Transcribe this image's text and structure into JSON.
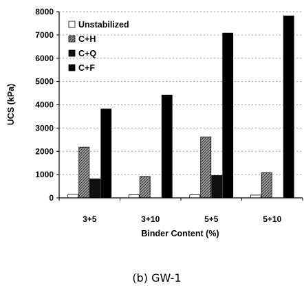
{
  "chart_data": {
    "type": "bar",
    "categories": [
      "3+5",
      "3+10",
      "5+5",
      "5+10"
    ],
    "series": [
      {
        "name": "Unstabilized",
        "values": [
          150,
          130,
          130,
          120
        ],
        "fill": "#ffffff",
        "pattern": "none"
      },
      {
        "name": "C+H",
        "values": [
          2180,
          920,
          2620,
          1080
        ],
        "fill": "#8a8a8a",
        "pattern": "hatch"
      },
      {
        "name": "C+Q",
        "values": [
          820,
          0,
          960,
          0
        ],
        "fill": "#111111",
        "pattern": "none"
      },
      {
        "name": "C+F",
        "values": [
          3820,
          4420,
          7080,
          7820
        ],
        "fill": "#000000",
        "pattern": "none"
      }
    ],
    "xlabel": "Binder Content (%)",
    "ylabel": "UCS (kPa)",
    "ylim": [
      0,
      8000
    ],
    "yticks": [
      0,
      1000,
      2000,
      3000,
      4000,
      5000,
      6000,
      7000,
      8000
    ],
    "grid": true,
    "legend_position": "top-left"
  },
  "caption": "(b) GW-1"
}
